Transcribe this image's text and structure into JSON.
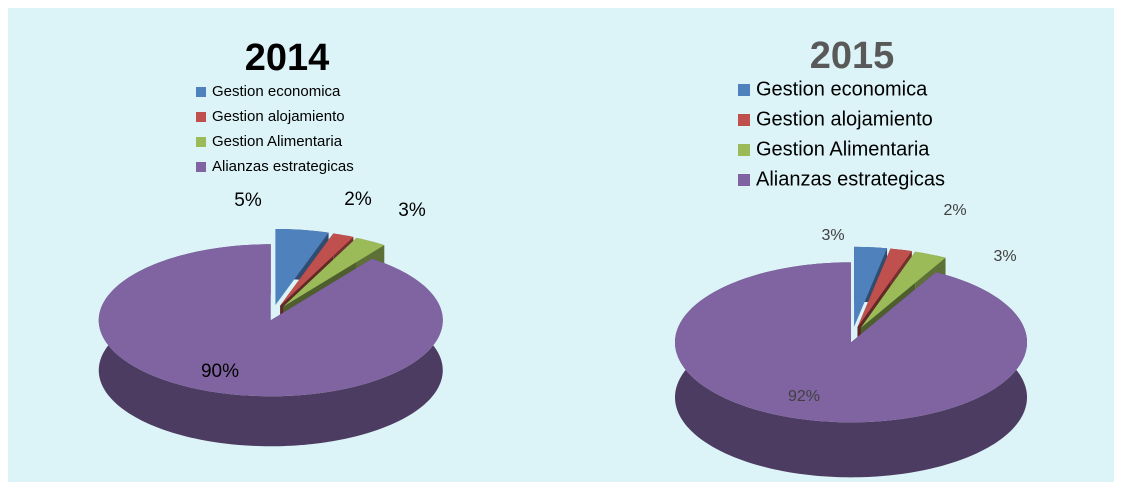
{
  "chart_data": [
    {
      "type": "pie",
      "title": "2014",
      "categories": [
        "Gestion economica",
        "Gestion alojamiento",
        "Gestion Alimentaria",
        "Alianzas estrategicas"
      ],
      "values": [
        5,
        2,
        3,
        90
      ],
      "value_labels": [
        "5%",
        "2%",
        "3%",
        "90%"
      ],
      "colors": [
        "#4f81bd",
        "#c0504d",
        "#9bbb59",
        "#8064a2"
      ]
    },
    {
      "type": "pie",
      "title": "2015",
      "categories": [
        "Gestion economica",
        "Gestion alojamiento",
        "Gestion Alimentaria",
        "Alianzas estrategicas"
      ],
      "values": [
        3,
        2,
        3,
        92
      ],
      "value_labels": [
        "3%",
        "2%",
        "3%",
        "92%"
      ],
      "colors": [
        "#4f81bd",
        "#c0504d",
        "#9bbb59",
        "#8064a2"
      ]
    }
  ]
}
